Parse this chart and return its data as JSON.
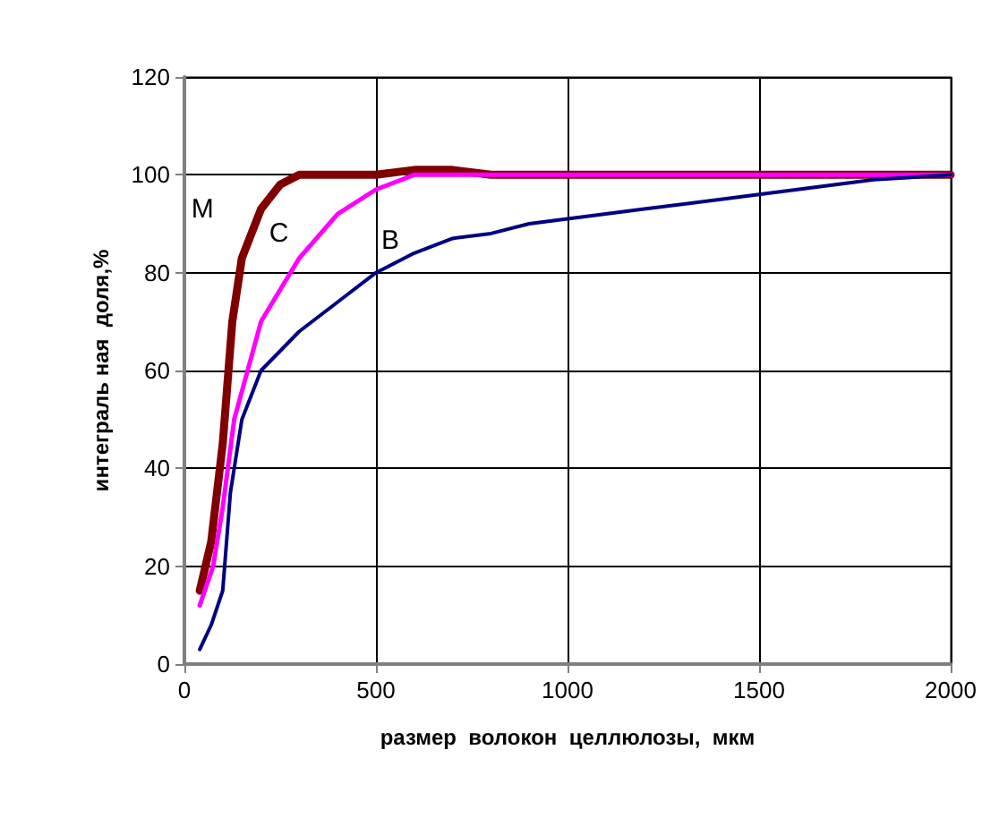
{
  "chart_data": {
    "type": "line",
    "xlabel": "размер  волокон  целлюлозы,  мкм",
    "ylabel": "интеграль ная  доля,%",
    "xlim": [
      0,
      2000
    ],
    "xticks": [
      0,
      500,
      1000,
      1500,
      2000
    ],
    "ylim": [
      0,
      120
    ],
    "yticks": [
      0,
      20,
      40,
      60,
      80,
      100,
      120
    ],
    "grid": true,
    "marker": "none",
    "line_style": "solid",
    "series": [
      {
        "name": "M",
        "color": "#800000",
        "x": [
          40,
          70,
          100,
          125,
          150,
          200,
          250,
          300,
          400,
          500,
          600,
          700,
          800,
          1000,
          1600,
          2000
        ],
        "values": [
          15,
          25,
          45,
          70,
          83,
          93,
          98,
          100,
          100,
          100,
          101,
          101,
          100,
          100,
          100,
          100
        ]
      },
      {
        "name": "C",
        "color": "#ff00ff",
        "x": [
          40,
          75,
          100,
          130,
          200,
          300,
          400,
          500,
          600,
          800,
          1000,
          1600,
          2000
        ],
        "values": [
          12,
          20,
          32,
          50,
          70,
          83,
          92,
          97,
          100,
          100,
          100,
          100,
          100
        ]
      },
      {
        "name": "B",
        "color": "#000080",
        "x": [
          40,
          70,
          100,
          120,
          150,
          200,
          300,
          400,
          500,
          600,
          700,
          800,
          900,
          1000,
          1200,
          1400,
          1600,
          1800,
          2000
        ],
        "values": [
          3,
          8,
          15,
          35,
          50,
          60,
          68,
          74,
          80,
          84,
          87,
          88,
          90,
          91,
          93,
          95,
          97,
          99,
          100
        ]
      }
    ]
  }
}
